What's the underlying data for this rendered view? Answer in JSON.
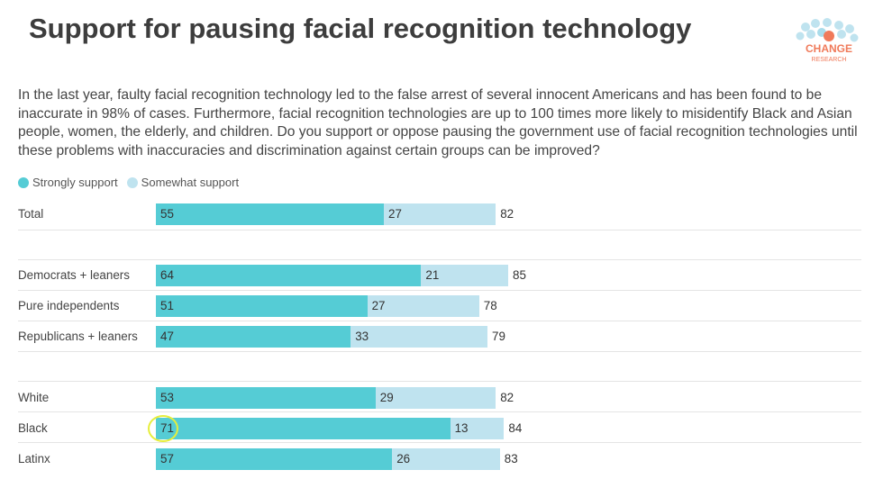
{
  "title": "Support for pausing facial recognition technology",
  "logo": {
    "line1": "CHANGE",
    "line2": "RESEARCH"
  },
  "question": "In the last year, faulty facial recognition technology led to the false arrest of several innocent Americans and has been found to be inaccurate in 98% of cases. Furthermore, facial recognition technologies are up to 100 times more likely to misidentify Black and Asian people, women, the elderly, and children. Do you support or oppose pausing the government use of facial recognition technologies until these problems with inaccuracies and discrimination against certain groups can be improved?",
  "colors": {
    "strong": "#55ccd5",
    "somewhat": "#bfe3ef",
    "highlight": "#e6ee3c"
  },
  "chart_data": {
    "type": "bar",
    "orientation": "horizontal",
    "stacked": true,
    "title": "Support for pausing facial recognition technology",
    "legend": [
      "Strongly support",
      "Somewhat support"
    ],
    "legend_position": "top-left",
    "xlim": [
      0,
      100
    ],
    "categories": [
      "Total",
      "Democrats + leaners",
      "Pure independents",
      "Republicans + leaners",
      "White",
      "Black",
      "Latinx"
    ],
    "groups": [
      [
        0
      ],
      [
        1,
        2,
        3
      ],
      [
        4,
        5,
        6
      ]
    ],
    "series": [
      {
        "name": "Strongly support",
        "values": [
          55,
          64,
          51,
          47,
          53,
          71,
          57
        ]
      },
      {
        "name": "Somewhat support",
        "values": [
          27,
          21,
          27,
          33,
          29,
          13,
          26
        ]
      }
    ],
    "totals": [
      82,
      85,
      78,
      79,
      82,
      84,
      83
    ],
    "highlighted": {
      "category": "Black",
      "series": "Strongly support"
    }
  }
}
